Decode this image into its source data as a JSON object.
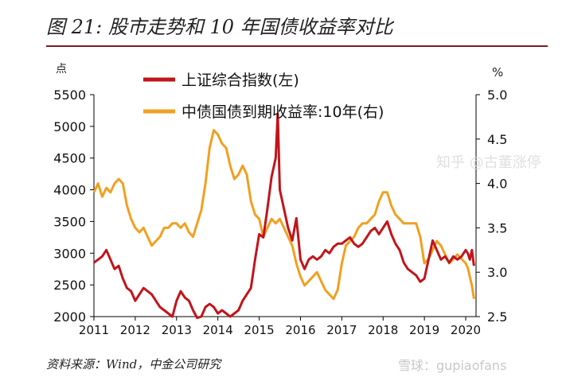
{
  "figure_title": "图 21:  股市走势和 10 年国债收益率对比",
  "source_note": "资料来源：Wind，中金公司研究",
  "watermark_main": "知乎 @古董涨停",
  "watermark_bottom": "雪球：gupiaofans",
  "colors": {
    "title_rule": "#7a1b1b",
    "sse": "#c0151b",
    "bond": "#f0a020",
    "axis": "#000000"
  },
  "chart_data": {
    "type": "line",
    "left_unit": "点",
    "right_unit": "%",
    "x_ticks": [
      "2011",
      "2012",
      "2013",
      "2014",
      "2015",
      "2016",
      "2017",
      "2018",
      "2019",
      "2020"
    ],
    "x_range": [
      2011.0,
      2020.25
    ],
    "y_left_ticks": [
      "5500",
      "5000",
      "4500",
      "4000",
      "3500",
      "3000",
      "2500",
      "2000"
    ],
    "y_left_range": [
      2000,
      5500
    ],
    "y_right_ticks": [
      "5.0",
      "4.5",
      "4.0",
      "3.5",
      "3.0",
      "2.5"
    ],
    "y_right_range": [
      2.5,
      5.0
    ],
    "legend_position": "top-center",
    "series": [
      {
        "name": "上证综合指数(左)",
        "axis": "left",
        "points": [
          [
            2011.0,
            2850
          ],
          [
            2011.1,
            2900
          ],
          [
            2011.2,
            2950
          ],
          [
            2011.3,
            3050
          ],
          [
            2011.4,
            2900
          ],
          [
            2011.5,
            2750
          ],
          [
            2011.6,
            2800
          ],
          [
            2011.7,
            2600
          ],
          [
            2011.8,
            2450
          ],
          [
            2011.9,
            2400
          ],
          [
            2012.0,
            2250
          ],
          [
            2012.1,
            2350
          ],
          [
            2012.2,
            2450
          ],
          [
            2012.3,
            2400
          ],
          [
            2012.4,
            2350
          ],
          [
            2012.5,
            2250
          ],
          [
            2012.6,
            2150
          ],
          [
            2012.7,
            2100
          ],
          [
            2012.8,
            2050
          ],
          [
            2012.9,
            2000
          ],
          [
            2013.0,
            2250
          ],
          [
            2013.1,
            2400
          ],
          [
            2013.2,
            2300
          ],
          [
            2013.3,
            2250
          ],
          [
            2013.4,
            2100
          ],
          [
            2013.5,
            1980
          ],
          [
            2013.6,
            2000
          ],
          [
            2013.7,
            2150
          ],
          [
            2013.8,
            2200
          ],
          [
            2013.9,
            2150
          ],
          [
            2014.0,
            2050
          ],
          [
            2014.1,
            2100
          ],
          [
            2014.2,
            2050
          ],
          [
            2014.3,
            2000
          ],
          [
            2014.4,
            2050
          ],
          [
            2014.5,
            2100
          ],
          [
            2014.6,
            2250
          ],
          [
            2014.7,
            2350
          ],
          [
            2014.8,
            2450
          ],
          [
            2014.9,
            2900
          ],
          [
            2015.0,
            3300
          ],
          [
            2015.1,
            3250
          ],
          [
            2015.2,
            3700
          ],
          [
            2015.3,
            4200
          ],
          [
            2015.4,
            4500
          ],
          [
            2015.45,
            5200
          ],
          [
            2015.5,
            4000
          ],
          [
            2015.6,
            3700
          ],
          [
            2015.7,
            3400
          ],
          [
            2015.8,
            3200
          ],
          [
            2015.9,
            3550
          ],
          [
            2016.0,
            2900
          ],
          [
            2016.1,
            2750
          ],
          [
            2016.2,
            2900
          ],
          [
            2016.3,
            2950
          ],
          [
            2016.4,
            2900
          ],
          [
            2016.5,
            2950
          ],
          [
            2016.6,
            3050
          ],
          [
            2016.7,
            3000
          ],
          [
            2016.8,
            3100
          ],
          [
            2016.9,
            3150
          ],
          [
            2017.0,
            3150
          ],
          [
            2017.1,
            3200
          ],
          [
            2017.2,
            3250
          ],
          [
            2017.3,
            3150
          ],
          [
            2017.4,
            3100
          ],
          [
            2017.5,
            3150
          ],
          [
            2017.6,
            3250
          ],
          [
            2017.7,
            3350
          ],
          [
            2017.8,
            3400
          ],
          [
            2017.9,
            3300
          ],
          [
            2018.0,
            3400
          ],
          [
            2018.1,
            3500
          ],
          [
            2018.2,
            3300
          ],
          [
            2018.3,
            3150
          ],
          [
            2018.4,
            3050
          ],
          [
            2018.5,
            2850
          ],
          [
            2018.6,
            2750
          ],
          [
            2018.7,
            2700
          ],
          [
            2018.8,
            2650
          ],
          [
            2018.9,
            2550
          ],
          [
            2019.0,
            2600
          ],
          [
            2019.1,
            2900
          ],
          [
            2019.2,
            3200
          ],
          [
            2019.3,
            3050
          ],
          [
            2019.4,
            2900
          ],
          [
            2019.5,
            2950
          ],
          [
            2019.6,
            2850
          ],
          [
            2019.7,
            2950
          ],
          [
            2019.8,
            2900
          ],
          [
            2019.9,
            2950
          ],
          [
            2020.0,
            3050
          ],
          [
            2020.05,
            3000
          ],
          [
            2020.1,
            2900
          ],
          [
            2020.15,
            3050
          ],
          [
            2020.2,
            2800
          ]
        ]
      },
      {
        "name": "中债国债到期收益率:10年(右)",
        "axis": "right",
        "points": [
          [
            2011.0,
            3.9
          ],
          [
            2011.1,
            4.0
          ],
          [
            2011.2,
            3.85
          ],
          [
            2011.3,
            3.95
          ],
          [
            2011.4,
            3.9
          ],
          [
            2011.5,
            4.0
          ],
          [
            2011.6,
            4.05
          ],
          [
            2011.7,
            4.0
          ],
          [
            2011.8,
            3.75
          ],
          [
            2011.9,
            3.6
          ],
          [
            2012.0,
            3.5
          ],
          [
            2012.1,
            3.45
          ],
          [
            2012.2,
            3.5
          ],
          [
            2012.3,
            3.4
          ],
          [
            2012.4,
            3.3
          ],
          [
            2012.5,
            3.35
          ],
          [
            2012.6,
            3.4
          ],
          [
            2012.7,
            3.5
          ],
          [
            2012.8,
            3.5
          ],
          [
            2012.9,
            3.55
          ],
          [
            2013.0,
            3.55
          ],
          [
            2013.1,
            3.5
          ],
          [
            2013.2,
            3.55
          ],
          [
            2013.3,
            3.45
          ],
          [
            2013.4,
            3.4
          ],
          [
            2013.5,
            3.55
          ],
          [
            2013.6,
            3.7
          ],
          [
            2013.7,
            4.0
          ],
          [
            2013.8,
            4.4
          ],
          [
            2013.9,
            4.6
          ],
          [
            2014.0,
            4.55
          ],
          [
            2014.1,
            4.45
          ],
          [
            2014.2,
            4.4
          ],
          [
            2014.3,
            4.2
          ],
          [
            2014.4,
            4.05
          ],
          [
            2014.5,
            4.1
          ],
          [
            2014.6,
            4.2
          ],
          [
            2014.7,
            4.1
          ],
          [
            2014.8,
            3.8
          ],
          [
            2014.9,
            3.65
          ],
          [
            2015.0,
            3.6
          ],
          [
            2015.1,
            3.4
          ],
          [
            2015.2,
            3.5
          ],
          [
            2015.3,
            3.6
          ],
          [
            2015.4,
            3.55
          ],
          [
            2015.5,
            3.6
          ],
          [
            2015.6,
            3.5
          ],
          [
            2015.7,
            3.4
          ],
          [
            2015.8,
            3.3
          ],
          [
            2015.9,
            3.1
          ],
          [
            2016.0,
            2.95
          ],
          [
            2016.1,
            2.85
          ],
          [
            2016.2,
            2.9
          ],
          [
            2016.3,
            2.95
          ],
          [
            2016.4,
            3.0
          ],
          [
            2016.5,
            2.9
          ],
          [
            2016.6,
            2.8
          ],
          [
            2016.7,
            2.75
          ],
          [
            2016.8,
            2.7
          ],
          [
            2016.9,
            2.8
          ],
          [
            2017.0,
            3.1
          ],
          [
            2017.1,
            3.3
          ],
          [
            2017.2,
            3.35
          ],
          [
            2017.3,
            3.4
          ],
          [
            2017.4,
            3.5
          ],
          [
            2017.5,
            3.55
          ],
          [
            2017.6,
            3.55
          ],
          [
            2017.7,
            3.6
          ],
          [
            2017.8,
            3.65
          ],
          [
            2017.9,
            3.8
          ],
          [
            2018.0,
            3.9
          ],
          [
            2018.1,
            3.9
          ],
          [
            2018.2,
            3.75
          ],
          [
            2018.3,
            3.65
          ],
          [
            2018.4,
            3.6
          ],
          [
            2018.5,
            3.55
          ],
          [
            2018.6,
            3.55
          ],
          [
            2018.7,
            3.55
          ],
          [
            2018.8,
            3.55
          ],
          [
            2018.9,
            3.4
          ],
          [
            2019.0,
            3.1
          ],
          [
            2019.1,
            3.15
          ],
          [
            2019.2,
            3.25
          ],
          [
            2019.3,
            3.35
          ],
          [
            2019.4,
            3.3
          ],
          [
            2019.5,
            3.2
          ],
          [
            2019.6,
            3.1
          ],
          [
            2019.7,
            3.15
          ],
          [
            2019.8,
            3.2
          ],
          [
            2019.9,
            3.15
          ],
          [
            2020.0,
            3.1
          ],
          [
            2020.05,
            3.05
          ],
          [
            2020.1,
            2.95
          ],
          [
            2020.15,
            2.85
          ],
          [
            2020.2,
            2.7
          ]
        ]
      }
    ]
  }
}
